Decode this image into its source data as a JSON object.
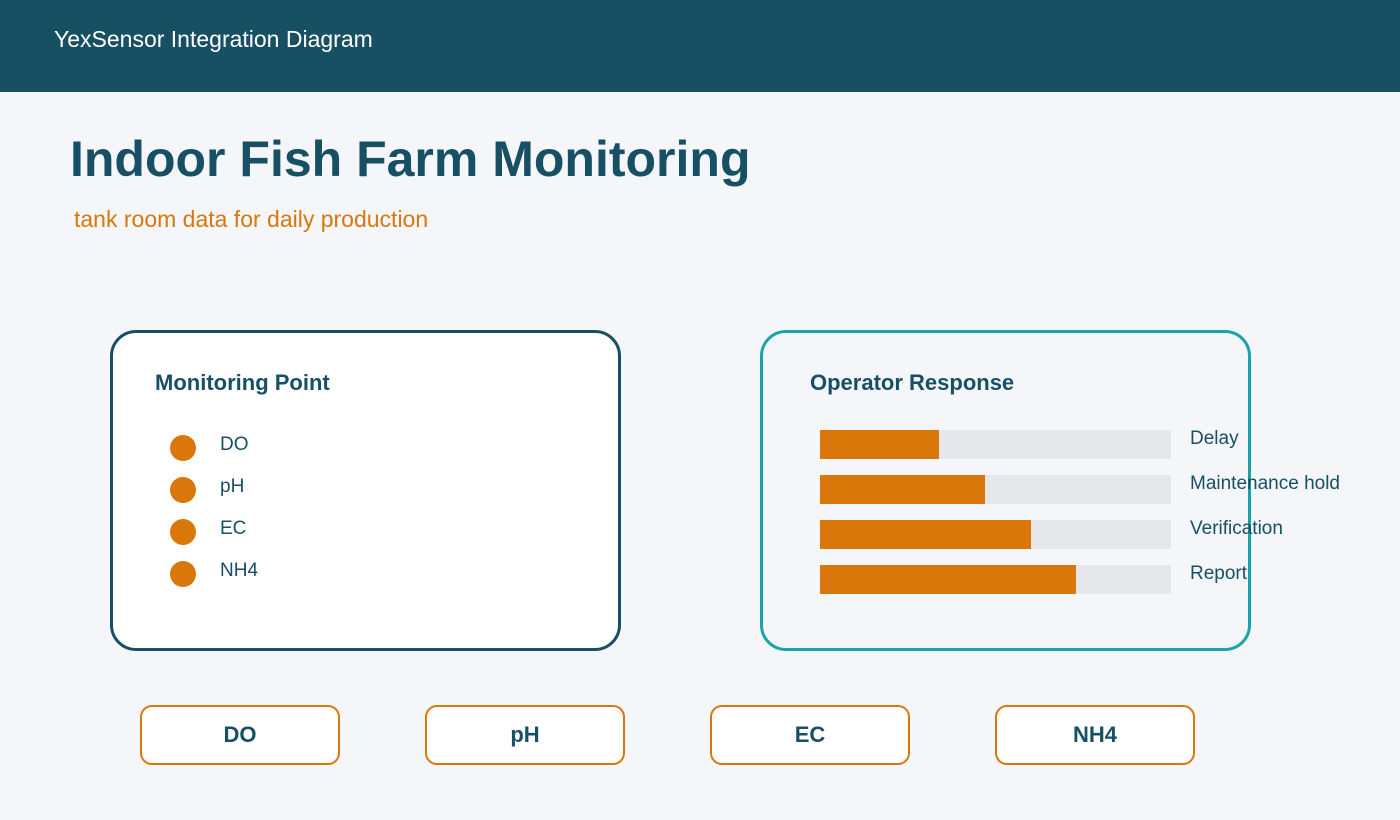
{
  "header": {
    "title": "YexSensor Integration Diagram"
  },
  "page": {
    "title": "Indoor Fish Farm Monitoring",
    "subtitle": "tank room data for daily production"
  },
  "monitoring_point": {
    "title": "Monitoring Point",
    "items": [
      "DO",
      "pH",
      "EC",
      "NH4"
    ]
  },
  "operator_response": {
    "title": "Operator Response",
    "items": [
      {
        "label": "Delay",
        "value": 34
      },
      {
        "label": "Maintenance hold",
        "value": 47
      },
      {
        "label": "Verification",
        "value": 60
      },
      {
        "label": "Report",
        "value": 73
      }
    ]
  },
  "buttons": [
    "DO",
    "pH",
    "EC",
    "NH4"
  ]
}
